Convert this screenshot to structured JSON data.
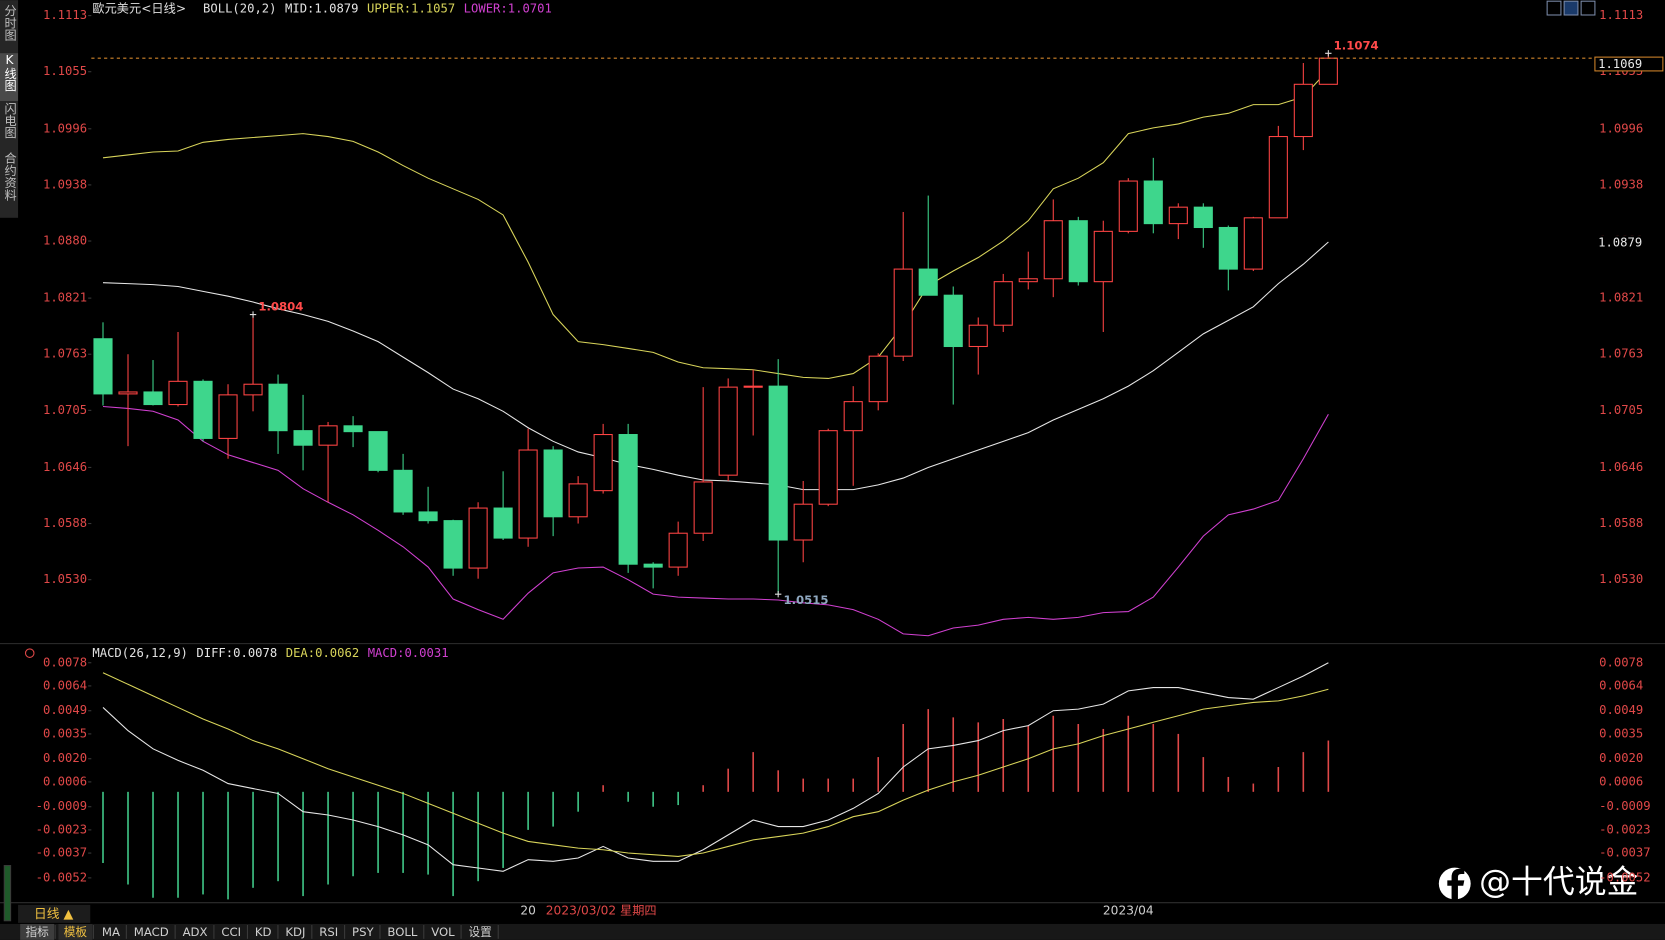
{
  "chart_data": [
    {
      "type": "candlestick",
      "title": "歐元美元<日线>",
      "indicator": "BOLL(20,2)",
      "categories": [
        null,
        null,
        null,
        null,
        null,
        null,
        null,
        null,
        null,
        null,
        null,
        null,
        null,
        null,
        null,
        null,
        null,
        "20",
        null,
        null,
        null,
        null,
        null,
        null,
        null,
        null,
        null,
        null,
        null,
        null,
        null,
        null,
        null,
        null,
        null,
        null,
        null,
        null,
        null,
        null,
        null,
        "2023/04",
        null,
        null,
        null,
        null,
        null,
        null,
        null,
        null
      ],
      "cursor_label": "2023/03/02 星期四",
      "open": [
        1.0779,
        1.0722,
        1.0724,
        1.0711,
        1.0735,
        1.0676,
        1.0721,
        1.0732,
        1.0684,
        1.0669,
        1.0689,
        1.0683,
        1.0643,
        1.06,
        1.0591,
        1.0542,
        1.0604,
        1.0573,
        1.0664,
        1.0595,
        1.0622,
        1.068,
        1.0546,
        1.0543,
        1.0578,
        1.0638,
        1.0729,
        1.073,
        1.0571,
        1.0608,
        1.0684,
        1.0714,
        1.0761,
        1.0851,
        1.0824,
        1.0771,
        1.0793,
        1.0838,
        1.0841,
        1.0901,
        1.0838,
        1.089,
        1.0942,
        1.0898,
        1.0915,
        1.0894,
        1.0851,
        1.0904,
        1.0988,
        1.1042
      ],
      "high": [
        1.0796,
        1.0763,
        1.0757,
        1.0786,
        1.0737,
        1.0732,
        1.0804,
        1.0742,
        1.0721,
        1.0693,
        1.0699,
        1.0683,
        1.066,
        1.0626,
        1.0592,
        1.061,
        1.0642,
        1.0686,
        1.0668,
        1.0637,
        1.0691,
        1.0691,
        1.0548,
        1.059,
        1.0729,
        1.0738,
        1.0747,
        1.0758,
        1.0632,
        1.0686,
        1.073,
        1.0764,
        1.091,
        1.0927,
        1.0833,
        1.0801,
        1.0846,
        1.0869,
        1.0923,
        1.0905,
        1.0901,
        1.0945,
        1.0966,
        1.0919,
        1.0919,
        1.0896,
        1.0905,
        1.0999,
        1.1064,
        1.1074
      ],
      "low": [
        1.071,
        1.0668,
        1.071,
        1.0709,
        1.0673,
        1.0655,
        1.0704,
        1.066,
        1.0643,
        1.061,
        1.0667,
        1.0641,
        1.0597,
        1.0588,
        1.0534,
        1.0531,
        1.0571,
        1.0564,
        1.0575,
        1.0588,
        1.0619,
        1.0537,
        1.0521,
        1.0534,
        1.057,
        1.0632,
        1.0679,
        1.0515,
        1.0548,
        1.0606,
        1.0627,
        1.0705,
        1.0756,
        1.0824,
        1.0711,
        1.0742,
        1.0786,
        1.083,
        1.0822,
        1.0834,
        1.0786,
        1.0888,
        1.0888,
        1.0882,
        1.0873,
        1.0829,
        1.0849,
        1.0904,
        1.0974,
        1.1042
      ],
      "close": [
        1.0722,
        1.0724,
        1.0711,
        1.0735,
        1.0676,
        1.0721,
        1.0732,
        1.0684,
        1.0669,
        1.0689,
        1.0683,
        1.0643,
        1.06,
        1.0591,
        1.0542,
        1.0604,
        1.0573,
        1.0664,
        1.0595,
        1.0629,
        1.068,
        1.0546,
        1.0543,
        1.0578,
        1.0631,
        1.0729,
        1.073,
        1.0571,
        1.0608,
        1.0684,
        1.0714,
        1.0761,
        1.0851,
        1.0824,
        1.0771,
        1.0793,
        1.0838,
        1.0841,
        1.0901,
        1.0838,
        1.089,
        1.0942,
        1.0898,
        1.0915,
        1.0894,
        1.0851,
        1.0904,
        1.0988,
        1.1042,
        1.1069
      ],
      "up_color": "#ff4444",
      "down_color": "#3ed68c",
      "lines": [
        {
          "label": "MID:",
          "color": "#e6e6e6",
          "values": [
            1.0837,
            1.0836,
            1.0835,
            1.0833,
            1.0828,
            1.0823,
            1.0817,
            1.081,
            1.0804,
            1.0797,
            1.0787,
            1.0776,
            1.076,
            1.0744,
            1.0727,
            1.0717,
            1.0704,
            1.0687,
            1.0673,
            1.0662,
            1.0656,
            1.0649,
            1.0644,
            1.0638,
            1.0633,
            1.0632,
            1.063,
            1.0628,
            1.0623,
            1.0623,
            1.0623,
            1.0628,
            1.0635,
            1.0646,
            1.0655,
            1.0664,
            1.0673,
            1.0682,
            1.0695,
            1.0706,
            1.0717,
            1.073,
            1.0746,
            1.0765,
            1.0784,
            1.0798,
            1.0812,
            1.0836,
            1.0856,
            1.0879
          ]
        },
        {
          "label": "UPPER:",
          "color": "#d8d45a",
          "values": [
            1.0966,
            1.0969,
            1.0972,
            1.0973,
            1.0982,
            1.0985,
            1.0987,
            1.0989,
            1.0991,
            1.0988,
            1.0983,
            1.0972,
            1.0958,
            1.0945,
            1.0934,
            1.0923,
            1.0907,
            1.0858,
            1.0804,
            1.0776,
            1.0773,
            1.0769,
            1.0765,
            1.0755,
            1.0749,
            1.0748,
            1.0747,
            1.0743,
            1.0739,
            1.0738,
            1.0743,
            1.076,
            1.0793,
            1.0834,
            1.0849,
            1.0863,
            1.088,
            1.0901,
            1.0934,
            1.0945,
            1.0961,
            1.0991,
            1.0997,
            1.1001,
            1.1008,
            1.1012,
            1.1021,
            1.1021,
            1.1029,
            1.1057
          ]
        },
        {
          "label": "LOWER:",
          "color": "#d040d0",
          "values": [
            1.0709,
            1.0707,
            1.0704,
            1.0695,
            1.0673,
            1.0659,
            1.0651,
            1.0643,
            1.0624,
            1.061,
            1.0597,
            1.0581,
            1.0564,
            1.0543,
            1.051,
            1.0499,
            1.0489,
            1.0516,
            1.0537,
            1.0542,
            1.0543,
            1.053,
            1.0515,
            1.0512,
            1.0511,
            1.051,
            1.051,
            1.0509,
            1.0506,
            1.0504,
            1.0499,
            1.0489,
            1.0474,
            1.0472,
            1.048,
            1.0483,
            1.0489,
            1.0491,
            1.0489,
            1.0491,
            1.0496,
            1.0497,
            1.0512,
            1.0543,
            1.0575,
            1.0597,
            1.0603,
            1.0612,
            1.0655,
            1.0701
          ]
        }
      ],
      "annotations": [
        1.0804,
        1.1074,
        1.0515
      ],
      "ylim": [
        1.0465,
        1.1129
      ],
      "yticks": [
        1.1113,
        1.1055,
        1.0996,
        1.0938,
        {
          "value": 1.088,
          "label": "1.0880"
        },
        1.0821,
        1.0763,
        1.0705,
        1.0646,
        1.0588,
        {
          "value": 1.053,
          "label": "1.0530"
        }
      ],
      "grid": false
    },
    {
      "type": "macd",
      "title": "MACD(26,12,9)",
      "series": [
        {
          "name": "DIFF:",
          "color": "#e6e6e6",
          "values": [
            0.0051,
            0.0037,
            0.0026,
            0.0019,
            0.0013,
            0.0005,
            0.0002,
            -0.0001,
            -0.0012,
            -0.0014,
            -0.0017,
            -0.0021,
            -0.0026,
            -0.0032,
            -0.0044,
            -0.0046,
            -0.0048,
            -0.0041,
            -0.0042,
            -0.004,
            -0.0033,
            -0.004,
            -0.0042,
            -0.0042,
            -0.0035,
            -0.0026,
            -0.0017,
            -0.0021,
            -0.0021,
            -0.0017,
            -0.001,
            -0.0001,
            0.0015,
            0.0026,
            0.0028,
            0.0031,
            0.0037,
            0.004,
            0.0049,
            0.005,
            0.0053,
            0.0061,
            0.0063,
            0.0063,
            0.006,
            0.0057,
            0.0056,
            0.0063,
            0.007,
            0.0078
          ]
        },
        {
          "name": "DEA:",
          "color": "#d8d45a",
          "values": [
            0.0072,
            0.0065,
            0.0058,
            0.0051,
            0.0044,
            0.0038,
            0.0031,
            0.0026,
            0.002,
            0.0014,
            0.0009,
            0.0004,
            -0.0001,
            -0.0007,
            -0.0013,
            -0.0019,
            -0.0025,
            -0.003,
            -0.0032,
            -0.0034,
            -0.0035,
            -0.0037,
            -0.0038,
            -0.0039,
            -0.0037,
            -0.0033,
            -0.0029,
            -0.0027,
            -0.0025,
            -0.0021,
            -0.0015,
            -0.0012,
            -0.0005,
            0.0001,
            0.0006,
            0.001,
            0.0015,
            0.002,
            0.0026,
            0.0029,
            0.0034,
            0.0038,
            0.0042,
            0.0046,
            0.005,
            0.0052,
            0.0054,
            0.0055,
            0.0058,
            0.0062
          ]
        },
        {
          "name": "MACD:",
          "color": "#d040d0",
          "up_color": "#e04848",
          "down_color": "#40c888",
          "values": [
            -0.0043,
            -0.0056,
            -0.0064,
            -0.0064,
            -0.0062,
            -0.0065,
            -0.0058,
            -0.0054,
            -0.0063,
            -0.0056,
            -0.0051,
            -0.0049,
            -0.0049,
            -0.005,
            -0.0063,
            -0.0054,
            -0.0046,
            -0.0023,
            -0.0021,
            -0.0012,
            0.0004,
            -0.0006,
            -0.0009,
            -0.0008,
            0.0004,
            0.0014,
            0.0024,
            0.0013,
            0.0008,
            0.0008,
            0.0008,
            0.0021,
            0.0041,
            0.005,
            0.0045,
            0.0042,
            0.0044,
            0.004,
            0.0046,
            0.0041,
            0.0038,
            0.0046,
            0.0041,
            0.0035,
            0.0021,
            0.0009,
            0.0005,
            0.0015,
            0.0024,
            0.0031
          ]
        }
      ],
      "ylim": [
        -0.0067,
        0.0087
      ],
      "yticks": [
        0.0078,
        0.0064,
        0.0049,
        0.0035,
        {
          "value": 0.002,
          "label": "0.0020"
        },
        0.0006,
        -0.0009,
        -0.0023,
        -0.0037,
        -0.0052
      ],
      "grid": false
    }
  ],
  "ui": {
    "tabs": [
      "分时图",
      "K线图",
      "闪电图",
      "合约资料"
    ],
    "period": "日线 ▲",
    "toolbar": [
      "指标",
      "模板",
      "MA",
      "MACD",
      "ADX",
      "CCI",
      "KD",
      "KDJ",
      "RSI",
      "PSY",
      "BOLL",
      "VOL",
      "设置"
    ],
    "watermark": "@十代说金"
  }
}
